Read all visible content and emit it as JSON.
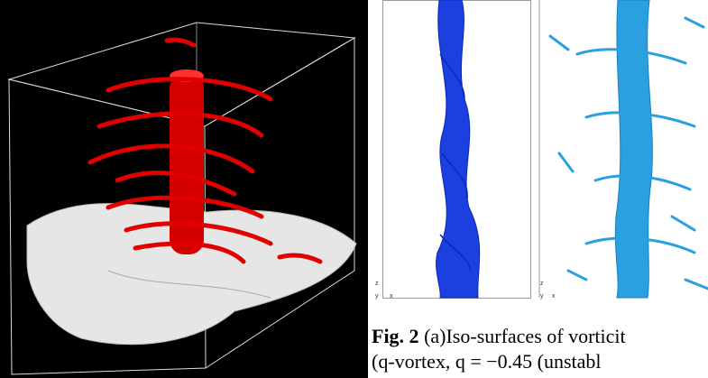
{
  "figure": {
    "label": "Fig. 2",
    "caption_lines": [
      "(a)Iso-surfaces of vorticit",
      "(q-vortex, q = −0.45 (unstabl"
    ]
  },
  "panels": [
    {
      "axis_labels": [
        "z",
        "y",
        "x"
      ]
    },
    {
      "axis_labels": [
        "z",
        "y",
        "x"
      ]
    }
  ]
}
